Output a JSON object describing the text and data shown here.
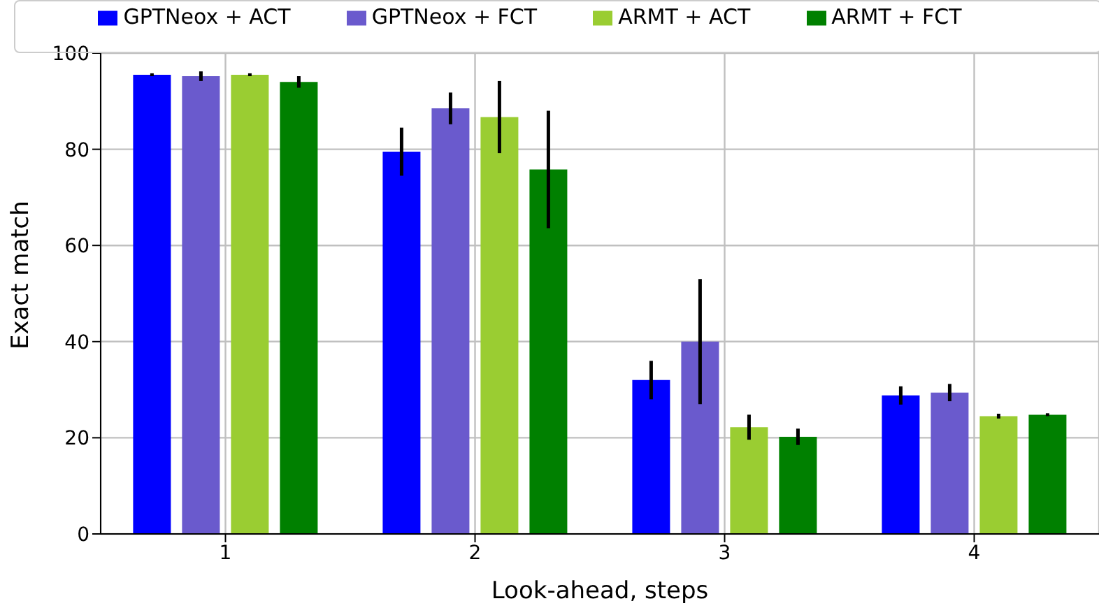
{
  "chart_data": {
    "type": "bar",
    "xlabel": "Look-ahead, steps",
    "ylabel": "Exact match",
    "categories": [
      "1",
      "2",
      "3",
      "4"
    ],
    "series": [
      {
        "name": "GPTNeox + ACT",
        "color": "#0000ff",
        "values": [
          95.5,
          79.5,
          32,
          28.8
        ],
        "errors": [
          0.3,
          5,
          4,
          1.9
        ]
      },
      {
        "name": "GPTNeox + FCT",
        "color": "#6a5acd",
        "values": [
          95.2,
          88.5,
          40,
          29.4
        ],
        "errors": [
          1,
          3.3,
          13,
          1.8
        ]
      },
      {
        "name": "ARMT + ACT",
        "color": "#9acd32",
        "values": [
          95.5,
          86.7,
          22.2,
          24.5
        ],
        "errors": [
          0.3,
          7.5,
          2.6,
          0.5
        ]
      },
      {
        "name": "ARMT + FCT",
        "color": "#008000",
        "values": [
          94,
          75.8,
          20.2,
          24.8
        ],
        "errors": [
          1.2,
          12.2,
          1.7,
          0.3
        ]
      }
    ],
    "ylim": [
      0,
      100
    ],
    "yticks": [
      0,
      20,
      40,
      60,
      80,
      100
    ],
    "grid": true,
    "legend": "top"
  }
}
